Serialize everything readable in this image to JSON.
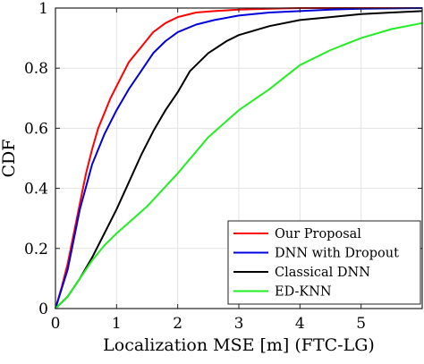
{
  "chart_data": {
    "type": "line",
    "xlabel": "Localization MSE [m] (FTC-LG)",
    "ylabel": "CDF",
    "xlim": [
      0,
      6
    ],
    "ylim": [
      0,
      1
    ],
    "x_ticks": [
      0,
      1,
      2,
      3,
      4,
      5
    ],
    "y_ticks": [
      0,
      0.2,
      0.4,
      0.6,
      0.8,
      1
    ],
    "x_tick_labels": [
      "0",
      "1",
      "2",
      "3",
      "4",
      "5"
    ],
    "y_tick_labels": [
      "0",
      "0.2",
      "0.4",
      "0.6",
      "0.8",
      "1"
    ],
    "grid": true,
    "legend_position": "bottom-right",
    "series": [
      {
        "name": "Our Proposal",
        "color": "#ff0000",
        "x": [
          0,
          0.1,
          0.2,
          0.3,
          0.4,
          0.5,
          0.6,
          0.7,
          0.8,
          0.9,
          1.0,
          1.2,
          1.4,
          1.6,
          1.8,
          2.0,
          2.3,
          2.6,
          3.0,
          3.5,
          4.0,
          5.0,
          6.0
        ],
        "y": [
          0,
          0.07,
          0.15,
          0.25,
          0.35,
          0.45,
          0.53,
          0.6,
          0.65,
          0.7,
          0.74,
          0.82,
          0.87,
          0.92,
          0.95,
          0.97,
          0.985,
          0.99,
          0.995,
          0.998,
          1.0,
          1.0,
          1.0
        ]
      },
      {
        "name": "DNN with Dropout",
        "color": "#0000dd",
        "x": [
          0,
          0.2,
          0.4,
          0.6,
          0.8,
          1.0,
          1.2,
          1.4,
          1.6,
          1.8,
          2.0,
          2.3,
          2.6,
          3.0,
          3.5,
          4.0,
          4.5,
          5.0,
          6.0
        ],
        "y": [
          0,
          0.13,
          0.33,
          0.48,
          0.58,
          0.66,
          0.73,
          0.79,
          0.85,
          0.89,
          0.92,
          0.945,
          0.96,
          0.975,
          0.985,
          0.99,
          0.995,
          0.998,
          1.0
        ]
      },
      {
        "name": "Classical DNN",
        "color": "#000000",
        "x": [
          0,
          0.2,
          0.4,
          0.6,
          0.8,
          1.0,
          1.2,
          1.4,
          1.6,
          1.8,
          2.0,
          2.2,
          2.5,
          2.8,
          3.0,
          3.5,
          4.0,
          4.5,
          5.0,
          5.5,
          6.0
        ],
        "y": [
          0,
          0.04,
          0.1,
          0.17,
          0.25,
          0.33,
          0.42,
          0.51,
          0.59,
          0.66,
          0.72,
          0.79,
          0.85,
          0.89,
          0.91,
          0.94,
          0.96,
          0.97,
          0.98,
          0.985,
          0.99
        ]
      },
      {
        "name": "ED-KNN",
        "color": "#22ee22",
        "x": [
          0,
          0.2,
          0.4,
          0.6,
          0.8,
          1.0,
          1.5,
          2.0,
          2.5,
          3.0,
          3.5,
          4.0,
          4.5,
          5.0,
          5.5,
          6.0
        ],
        "y": [
          0,
          0.04,
          0.1,
          0.16,
          0.21,
          0.25,
          0.34,
          0.45,
          0.57,
          0.66,
          0.73,
          0.81,
          0.86,
          0.9,
          0.93,
          0.95
        ]
      }
    ]
  }
}
